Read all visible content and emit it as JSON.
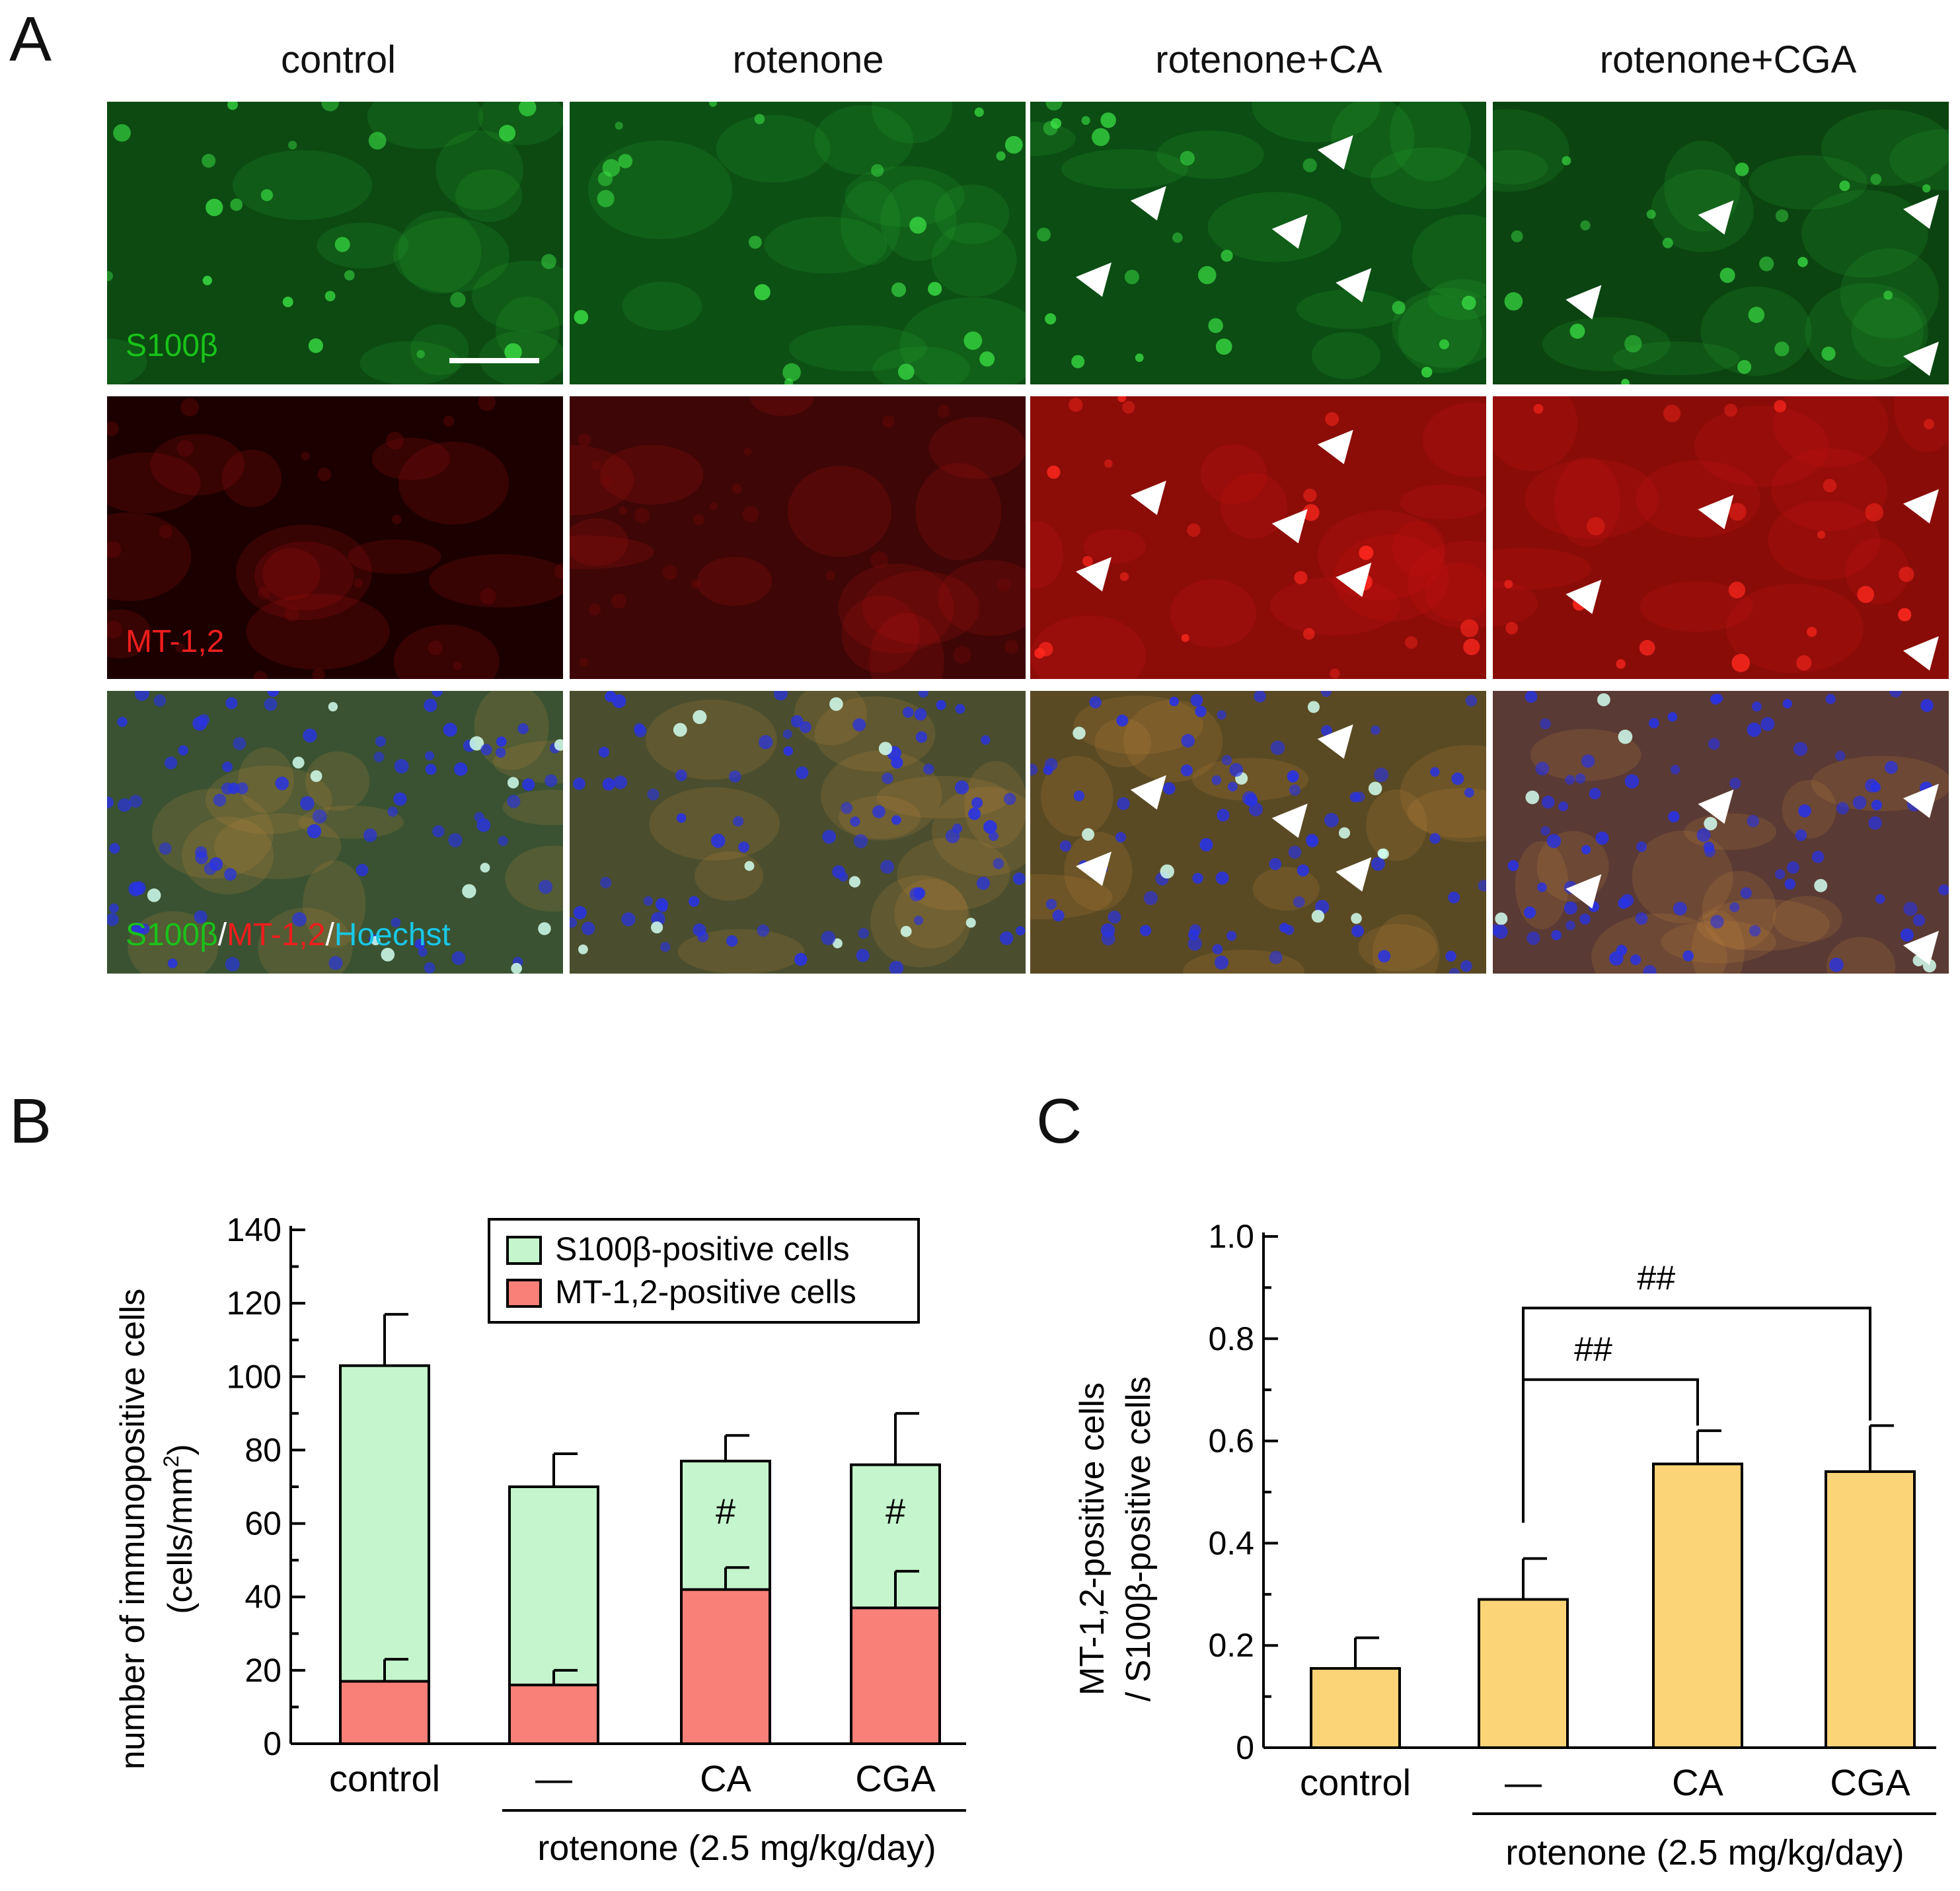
{
  "panels": {
    "a": {
      "letter": "A",
      "columns": [
        "control",
        "rotenone",
        "rotenone+CA",
        "rotenone+CGA"
      ],
      "row_labels": {
        "s100": "S100β",
        "mt": "MT-1,2",
        "merge": {
          "part1": "S100β",
          "sep1": "/",
          "part2": "MT-1,2",
          "sep2": "/",
          "part3": "Hoechst"
        }
      },
      "colors": {
        "green": "#19c219",
        "red": "#ee1d1d",
        "blue": "#19c8e6",
        "white": "#ffffff"
      }
    },
    "b": {
      "letter": "B",
      "ylabel_line1": "number of immunopositive cells",
      "ylabel_line2_pre": "(cells/mm",
      "ylabel_sup": "2",
      "ylabel_line2_post": ")",
      "legend": {
        "s100": "S100β-positive cells",
        "mt": "MT-1,2-positive cells"
      },
      "group_label": "rotenone (2.5 mg/kg/day)",
      "significance": "#"
    },
    "c": {
      "letter": "C",
      "ylabel_line1": "MT-1,2-positive cells",
      "ylabel_line2": "/ S100β-positive cells",
      "group_label": "rotenone (2.5 mg/kg/day)",
      "significance": "##"
    }
  },
  "chart_data": [
    {
      "type": "bar",
      "title": "",
      "subtype": "overlaid",
      "categories": [
        "control",
        "—",
        "CA",
        "CGA"
      ],
      "series": [
        {
          "name": "S100β-positive cells",
          "values": [
            103,
            70,
            77,
            76
          ],
          "errors": [
            14,
            9,
            7,
            14
          ],
          "color": "#c4f5cc"
        },
        {
          "name": "MT-1,2-positive cells",
          "values": [
            17,
            16,
            42,
            37
          ],
          "errors": [
            6,
            4,
            6,
            10
          ],
          "color": "#f88078"
        }
      ],
      "ylim": [
        0,
        140
      ],
      "yticks": [
        0,
        20,
        40,
        60,
        80,
        100,
        120,
        140
      ],
      "annotations": [
        {
          "category": "CA",
          "text": "#"
        },
        {
          "category": "CGA",
          "text": "#"
        }
      ],
      "xlabel": "rotenone (2.5 mg/kg/day)",
      "ylabel": "number of immunopositive cells (cells/mm2)"
    },
    {
      "type": "bar",
      "title": "",
      "categories": [
        "control",
        "—",
        "CA",
        "CGA"
      ],
      "values": [
        0.155,
        0.29,
        0.555,
        0.54
      ],
      "errors": [
        0.06,
        0.08,
        0.065,
        0.09
      ],
      "color": "#fcd478",
      "ylim": [
        0,
        1.0
      ],
      "yticks": [
        0,
        0.2,
        0.4,
        0.6,
        0.8,
        1.0
      ],
      "ytick_labels": [
        "0",
        "0.2",
        "0.4",
        "0.6",
        "0.8",
        "1.0"
      ],
      "comparisons": [
        {
          "from": "—",
          "to": "CA",
          "text": "##"
        },
        {
          "from": "—",
          "to": "CGA",
          "text": "##"
        }
      ],
      "xlabel": "rotenone (2.5 mg/kg/day)",
      "ylabel": "MT-1,2-positive cells / S100β-positive cells"
    }
  ]
}
